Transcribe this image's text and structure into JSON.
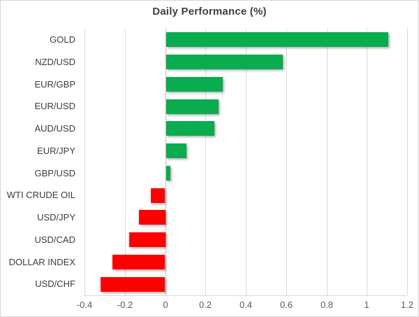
{
  "chart_data": {
    "type": "bar",
    "orientation": "horizontal",
    "title": "Daily Performance (%)",
    "categories": [
      "GOLD",
      "NZD/USD",
      "EUR/GBP",
      "EUR/USD",
      "AUD/USD",
      "EUR/JPY",
      "GBP/USD",
      "WTI CRUDE OIL",
      "USD/JPY",
      "USD/CAD",
      "DOLLAR INDEX",
      "USD/CHF"
    ],
    "values": [
      1.1,
      0.58,
      0.28,
      0.26,
      0.24,
      0.1,
      0.02,
      -0.07,
      -0.13,
      -0.18,
      -0.26,
      -0.32
    ],
    "xlim": [
      -0.4,
      1.2
    ],
    "x_ticks": [
      -0.4,
      -0.2,
      0,
      0.2,
      0.4,
      0.6,
      0.8,
      1,
      1.2
    ],
    "x_tick_labels": [
      "-0.4",
      "-0.2",
      "0",
      "0.2",
      "0.4",
      "0.6",
      "0.8",
      "1",
      "1.2"
    ],
    "grid": "vertical-only",
    "legend": "none",
    "xlabel": "",
    "ylabel": "",
    "colors": {
      "positive_bar": "#0bab50",
      "negative_bar": "#ff0000",
      "gridline": "#d9d9d9",
      "zero_axis": "#bfbfbf",
      "category_label": "#3b3b3b",
      "tick_label": "#595959",
      "title": "#404040",
      "frame_border": "#d6d6d6",
      "background": "#ffffff"
    }
  }
}
